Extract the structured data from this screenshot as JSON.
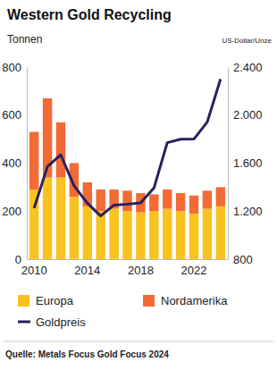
{
  "chart_data": {
    "type": "bar",
    "title": "Western Gold Recycling",
    "y_label": "Tonnen",
    "y2_label": "US-Dollar/Unze",
    "source": "Quelle: Metals Focus Gold Focus 2024",
    "categories": [
      "2010",
      null,
      null,
      null,
      "2014",
      null,
      null,
      null,
      "2018",
      null,
      null,
      null,
      "2022",
      null,
      null
    ],
    "stacked": true,
    "legend": "bottom",
    "series": [
      {
        "name": "Europa",
        "type": "bar",
        "color": "#f9c31f",
        "values": [
          290,
          340,
          340,
          260,
          220,
          200,
          210,
          200,
          195,
          200,
          210,
          200,
          190,
          210,
          220
        ]
      },
      {
        "name": "Nordamerika",
        "type": "bar",
        "color": "#f26b35",
        "values": [
          240,
          330,
          230,
          140,
          100,
          90,
          80,
          85,
          80,
          70,
          80,
          75,
          75,
          75,
          80
        ]
      },
      {
        "name": "Goldpreis",
        "type": "line",
        "axis": "y2",
        "color": "#27215e",
        "marker": "none",
        "values": [
          1225,
          1571,
          1669,
          1411,
          1266,
          1160,
          1251,
          1257,
          1268,
          1393,
          1770,
          1799,
          1800,
          1941,
          2300
        ]
      }
    ],
    "ylim": [
      0,
      800
    ],
    "yticks": [
      0,
      200,
      400,
      600,
      800
    ],
    "y2lim": [
      800,
      2400
    ],
    "y2ticks": [
      800,
      {
        "value": 1200,
        "label": "1.200"
      },
      {
        "value": 1600,
        "label": "1.600"
      },
      {
        "value": 2000,
        "label": "2.000"
      },
      {
        "value": 2400,
        "label": "2.400"
      }
    ],
    "grid": false
  }
}
